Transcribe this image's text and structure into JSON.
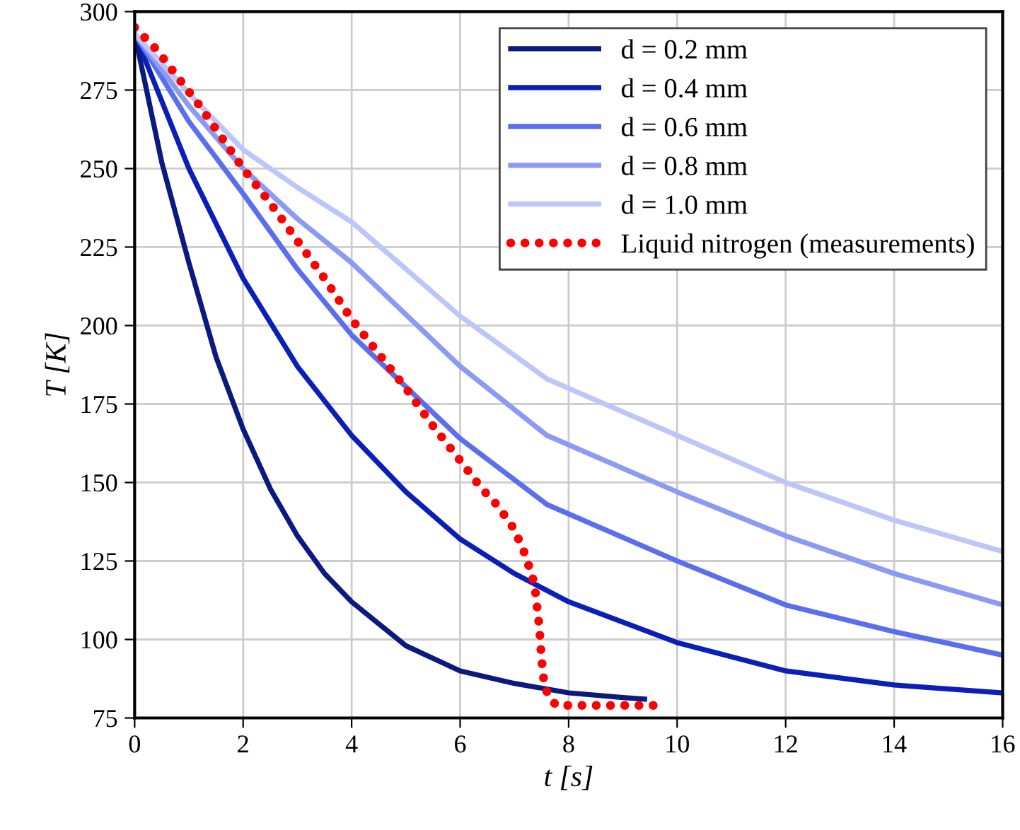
{
  "chart_data": {
    "type": "line",
    "xlabel": "t [s]",
    "ylabel": "T [K]",
    "xlim": [
      0,
      16
    ],
    "ylim": [
      75,
      300
    ],
    "xticks": [
      0,
      2,
      4,
      6,
      8,
      10,
      12,
      14,
      16
    ],
    "yticks": [
      75,
      100,
      125,
      150,
      175,
      200,
      225,
      250,
      275,
      300
    ],
    "grid": true,
    "legend": "top right",
    "line_style": "solid",
    "series": [
      {
        "name": "d = 0.2 mm",
        "color": "#0b1a7e",
        "x": [
          0,
          0.5,
          1,
          1.5,
          2,
          2.5,
          3,
          3.5,
          4,
          5,
          6,
          7,
          8,
          9,
          9.4
        ],
        "values": [
          293,
          252,
          220,
          190,
          167,
          148,
          133,
          121,
          112,
          98,
          90,
          86,
          83,
          81.5,
          81
        ]
      },
      {
        "name": "d = 0.4 mm",
        "color": "#0a1fb8",
        "x": [
          0,
          1,
          2,
          3,
          4,
          5,
          6,
          7,
          8,
          10,
          12,
          14,
          16
        ],
        "values": [
          293,
          250,
          215,
          187,
          165,
          147,
          132,
          121,
          112,
          99,
          90,
          85.5,
          83
        ]
      },
      {
        "name": "d = 0.6 mm",
        "color": "#5a6ef0",
        "x": [
          0,
          1,
          2,
          3,
          4,
          6,
          7.6,
          10,
          12,
          14,
          16
        ],
        "values": [
          293,
          265,
          242,
          218,
          197,
          164,
          143,
          125,
          111,
          102.5,
          95
        ]
      },
      {
        "name": "d = 0.8 mm",
        "color": "#8b9bf5",
        "x": [
          0,
          1,
          2,
          3,
          4,
          6,
          7.6,
          10,
          12,
          14,
          16
        ],
        "values": [
          293,
          270,
          250,
          234,
          220,
          187,
          165,
          147,
          133,
          121,
          111
        ]
      },
      {
        "name": "d = 1.0 mm",
        "color": "#bcc6fa",
        "x": [
          0,
          1,
          2,
          3,
          4,
          6,
          7.6,
          10,
          12,
          14,
          16
        ],
        "values": [
          293,
          274,
          256,
          244,
          233,
          203,
          183,
          165,
          150,
          138,
          128
        ]
      },
      {
        "name": "Liquid nitrogen (measurements)",
        "color": "#ff0000",
        "line_style": "dotted",
        "x": [
          0,
          0.4,
          0.8,
          1.2,
          1.6,
          2,
          2.5,
          3,
          3.5,
          4,
          4.5,
          5,
          5.5,
          6,
          6.4,
          6.7,
          7,
          7.2,
          7.37,
          7.46,
          7.5,
          7.55,
          7.63,
          7.77,
          8,
          9.6
        ],
        "values": [
          295,
          288,
          279,
          270,
          260,
          250,
          239,
          227,
          215,
          202,
          191,
          180,
          168,
          157,
          148,
          142.5,
          135,
          127,
          117.7,
          104,
          94,
          85.5,
          82,
          79,
          79,
          79
        ]
      }
    ]
  }
}
